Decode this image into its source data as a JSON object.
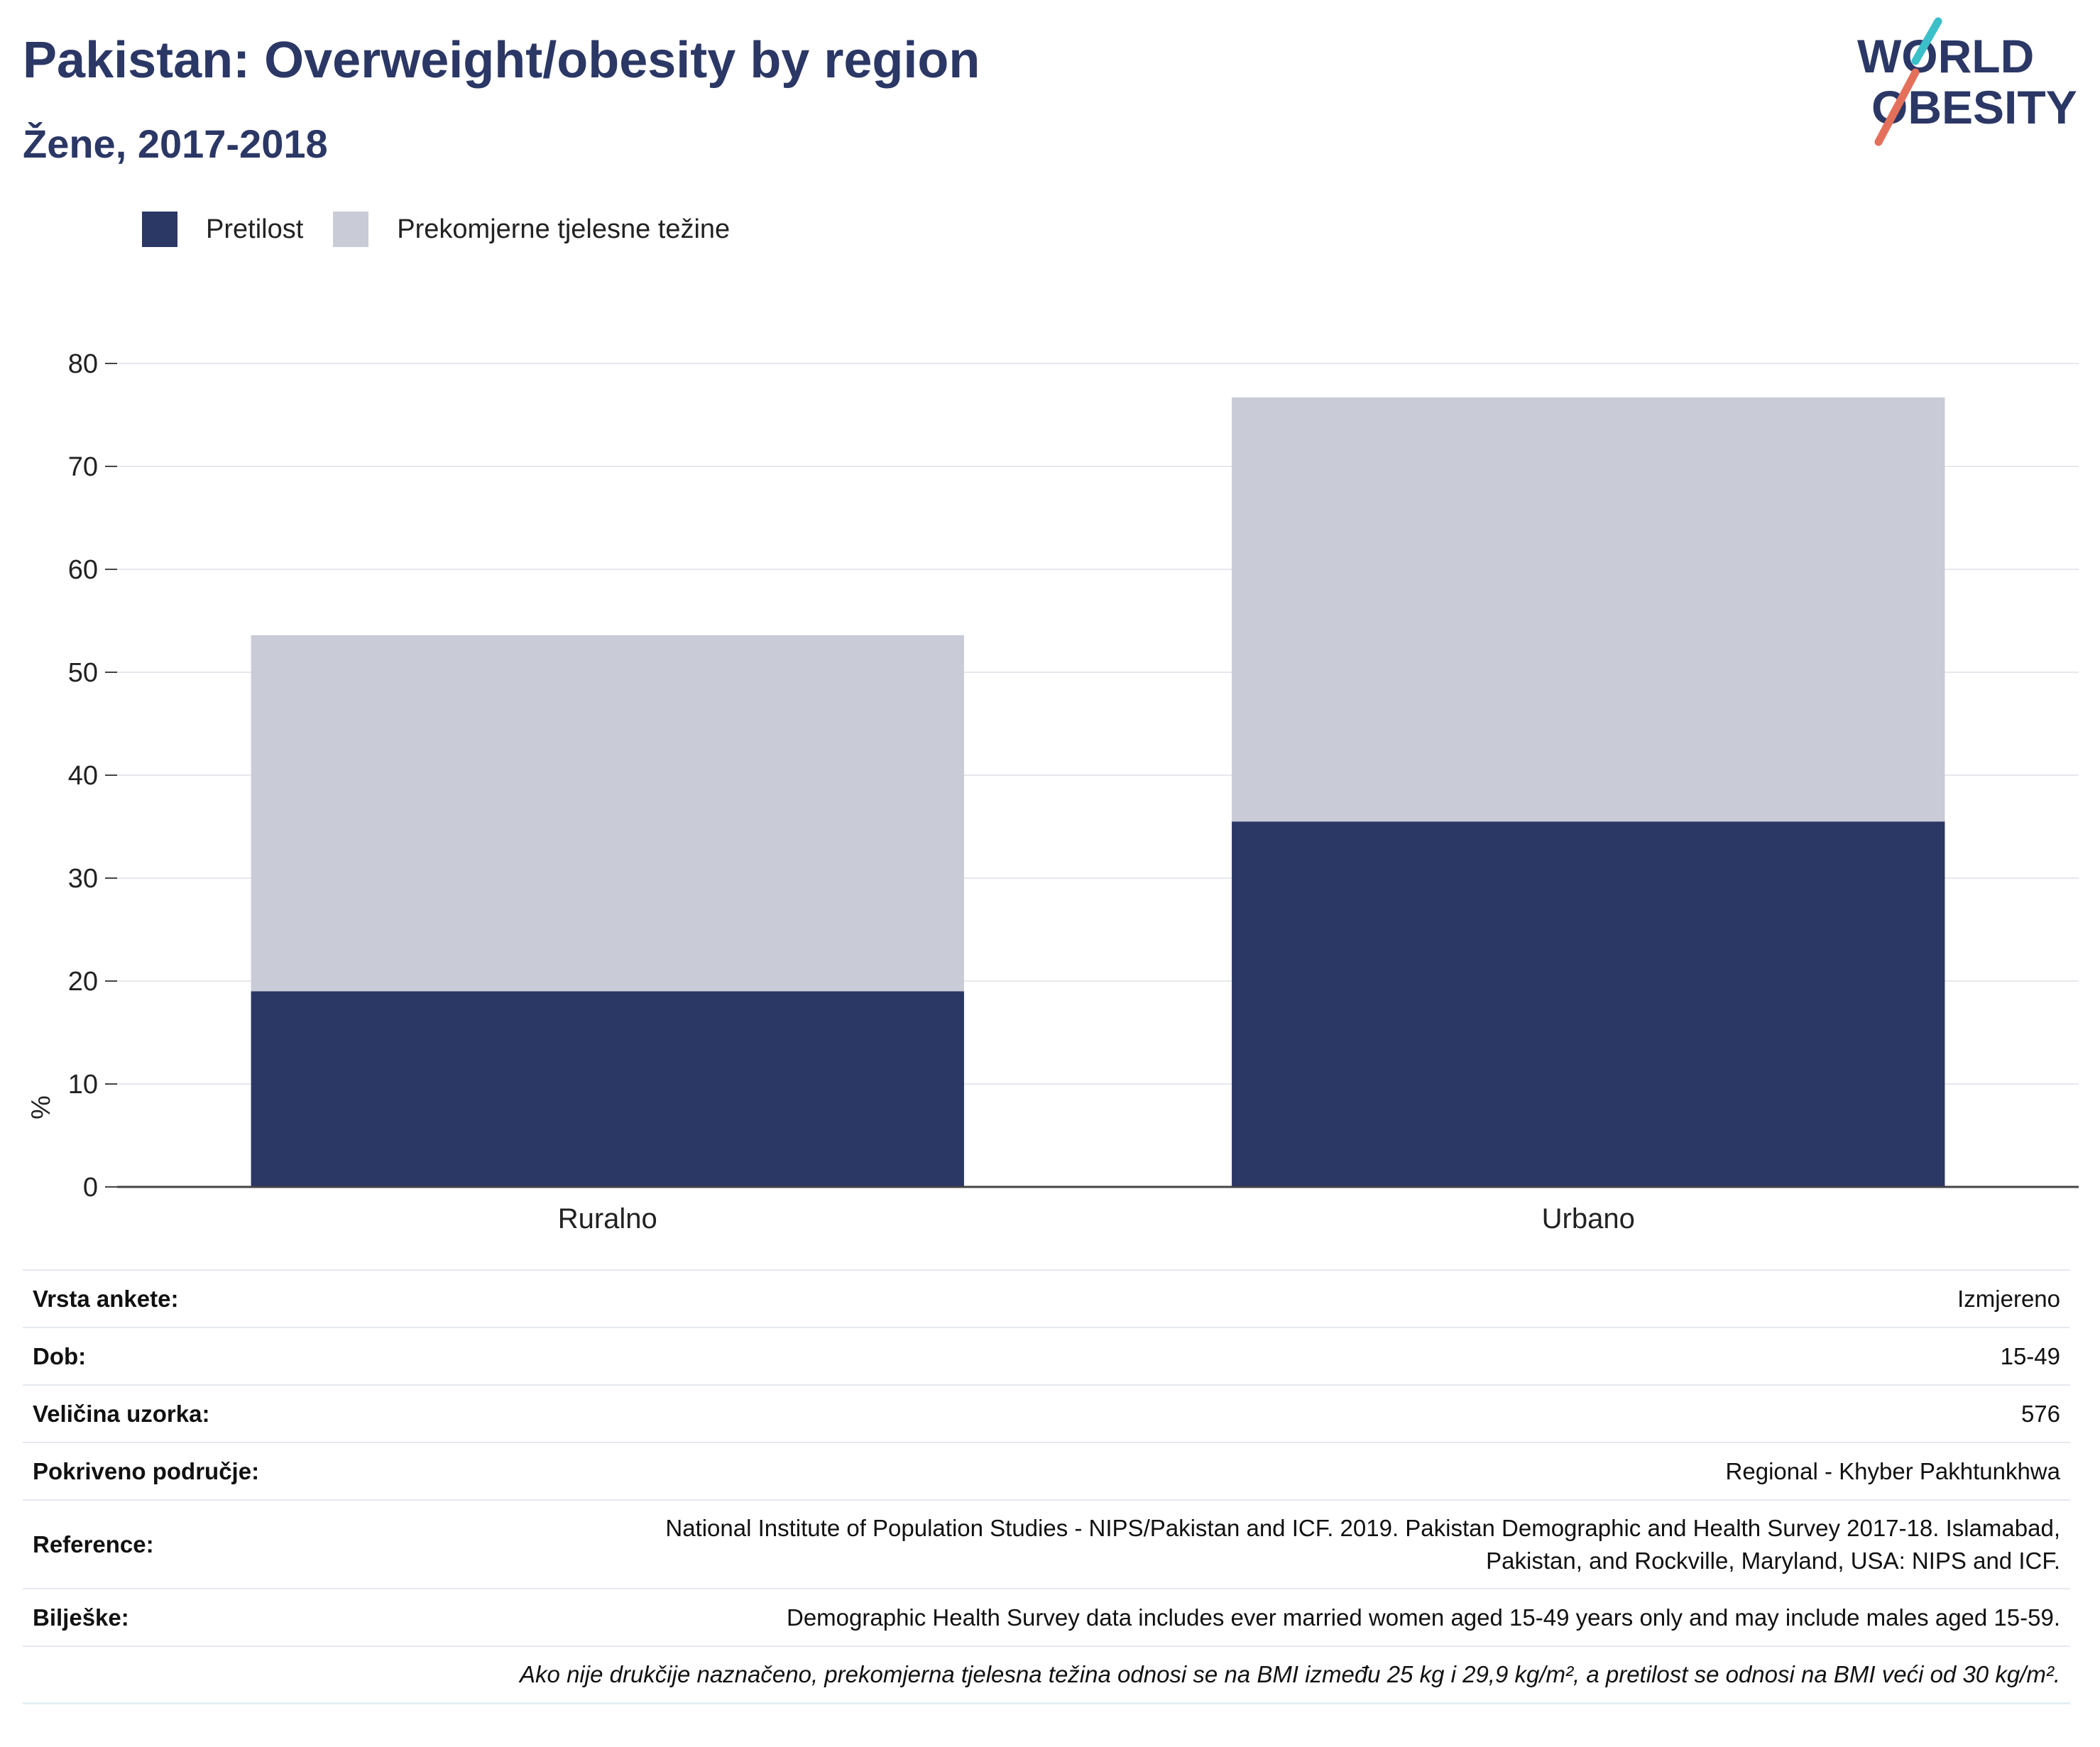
{
  "header": {
    "title": "Pakistan: Overweight/obesity by region",
    "subtitle": "Žene, 2017-2018"
  },
  "logo": {
    "line1": "WORLD",
    "line2": "OBESITY"
  },
  "colors": {
    "obesity": "#2b3765",
    "overweight": "#c9cbd7",
    "logo_teal": "#3bbfc8",
    "logo_red": "#e4705b"
  },
  "chart_data": {
    "type": "bar",
    "stacked": true,
    "categories": [
      "Ruralno",
      "Urbano"
    ],
    "series": [
      {
        "name": "Pretilost",
        "color": "#2b3765",
        "values": [
          19.0,
          35.5
        ]
      },
      {
        "name": "Prekomjerne tjelesne težine",
        "color": "#c9cbd7",
        "values": [
          34.6,
          41.2
        ]
      }
    ],
    "ylabel": "%",
    "ylim": [
      0,
      80
    ],
    "yticks": [
      0,
      10,
      20,
      30,
      40,
      50,
      60,
      70,
      80
    ],
    "grid": true,
    "legend_position": "top-left"
  },
  "info": {
    "rows": [
      {
        "label": "Vrsta ankete:",
        "value": "Izmjereno"
      },
      {
        "label": "Dob:",
        "value": "15-49"
      },
      {
        "label": "Veličina uzorka:",
        "value": "576"
      },
      {
        "label": "Pokriveno područje:",
        "value": "Regional - Khyber Pakhtunkhwa"
      },
      {
        "label": "Reference:",
        "value_line1": "National Institute of Population Studies - NIPS/Pakistan and ICF. 2019. Pakistan Demographic and Health Survey 2017-18. Islamabad,",
        "value_line2": "Pakistan, and Rockville, Maryland, USA: NIPS and ICF."
      },
      {
        "label": "Bilješke:",
        "value": "Demographic Health Survey data includes ever married women aged 15-49 years only and may include males aged 15-59."
      }
    ],
    "footnote": "Ako nije drukčije naznačeno, prekomjerna tjelesna težina odnosi se na BMI između 25 kg i 29,9 kg/m², a pretilost se odnosi na BMI veći od 30 kg/m²."
  }
}
